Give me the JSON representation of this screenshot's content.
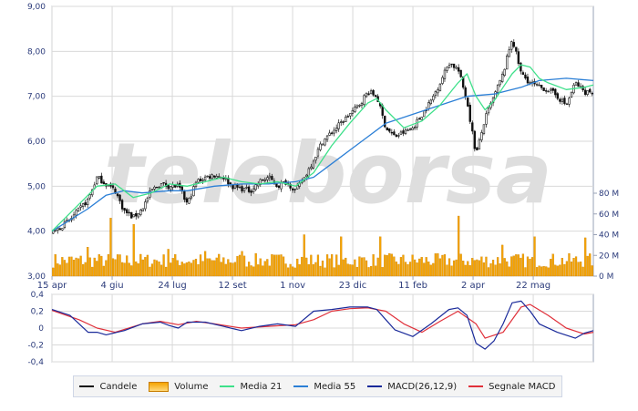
{
  "watermark": "teleborsa",
  "colors": {
    "candle": "#111111",
    "volume": "#f5a300",
    "volume_edge": "#c77d00",
    "media21": "#3ee08a",
    "media55": "#2b7fd6",
    "macd": "#1a2a9a",
    "signal": "#e0303a",
    "grid": "#d9d9d9",
    "axis_text": "#2a3a7a"
  },
  "x_ticks": [
    "15 apr",
    "4 giu",
    "24 lug",
    "12 set",
    "1 nov",
    "23 dic",
    "11 feb",
    "2 apr",
    "22 mag"
  ],
  "legend": [
    {
      "label": "Candele",
      "key": "candle",
      "kind": "line"
    },
    {
      "label": "Volume",
      "key": "volume",
      "kind": "box"
    },
    {
      "label": "Media 21",
      "key": "media21",
      "kind": "line"
    },
    {
      "label": "Media 55",
      "key": "media55",
      "kind": "line"
    },
    {
      "label": "MACD(26,12,9)",
      "key": "macd",
      "kind": "line"
    },
    {
      "label": "Segnale MACD",
      "key": "signal",
      "kind": "line"
    }
  ],
  "chart_data": [
    {
      "type": "candlestick",
      "ylim": [
        3.0,
        9.0
      ],
      "y_ticks": [
        "3,00",
        "4,00",
        "5,00",
        "6,00",
        "7,00",
        "8,00",
        "9,00"
      ],
      "x_range": [
        0,
        120
      ],
      "close_path": [
        [
          0,
          3.95
        ],
        [
          4,
          4.25
        ],
        [
          8,
          4.7
        ],
        [
          10,
          5.2
        ],
        [
          12,
          5.05
        ],
        [
          14,
          4.9
        ],
        [
          16,
          4.45
        ],
        [
          18,
          4.3
        ],
        [
          20,
          4.5
        ],
        [
          22,
          4.9
        ],
        [
          24,
          5.05
        ],
        [
          26,
          5.0
        ],
        [
          28,
          5.0
        ],
        [
          30,
          4.6
        ],
        [
          32,
          5.1
        ],
        [
          34,
          5.2
        ],
        [
          36,
          5.25
        ],
        [
          38,
          5.2
        ],
        [
          40,
          5.0
        ],
        [
          42,
          4.95
        ],
        [
          44,
          4.9
        ],
        [
          46,
          5.1
        ],
        [
          48,
          5.2
        ],
        [
          50,
          5.0
        ],
        [
          52,
          5.1
        ],
        [
          54,
          4.9
        ],
        [
          56,
          5.2
        ],
        [
          58,
          5.6
        ],
        [
          60,
          6.0
        ],
        [
          62,
          6.2
        ],
        [
          64,
          6.4
        ],
        [
          66,
          6.6
        ],
        [
          68,
          6.8
        ],
        [
          70,
          7.1
        ],
        [
          72,
          7.0
        ],
        [
          74,
          6.3
        ],
        [
          76,
          6.1
        ],
        [
          78,
          6.2
        ],
        [
          80,
          6.3
        ],
        [
          82,
          6.6
        ],
        [
          84,
          6.9
        ],
        [
          86,
          7.3
        ],
        [
          88,
          7.75
        ],
        [
          90,
          7.6
        ],
        [
          92,
          6.9
        ],
        [
          94,
          5.7
        ],
        [
          96,
          6.5
        ],
        [
          98,
          7.0
        ],
        [
          100,
          7.5
        ],
        [
          102,
          8.3
        ],
        [
          104,
          7.5
        ],
        [
          106,
          7.3
        ],
        [
          108,
          7.2
        ],
        [
          110,
          7.15
        ],
        [
          112,
          7.0
        ],
        [
          114,
          6.8
        ],
        [
          116,
          7.3
        ],
        [
          118,
          7.1
        ],
        [
          120,
          7.1
        ]
      ],
      "media21": [
        [
          0,
          4.0
        ],
        [
          6,
          4.6
        ],
        [
          10,
          5.0
        ],
        [
          14,
          5.05
        ],
        [
          18,
          4.75
        ],
        [
          22,
          4.85
        ],
        [
          26,
          5.05
        ],
        [
          30,
          5.0
        ],
        [
          34,
          5.1
        ],
        [
          38,
          5.2
        ],
        [
          42,
          5.1
        ],
        [
          46,
          5.05
        ],
        [
          50,
          5.1
        ],
        [
          54,
          5.0
        ],
        [
          58,
          5.3
        ],
        [
          62,
          5.9
        ],
        [
          66,
          6.4
        ],
        [
          70,
          6.85
        ],
        [
          72,
          6.95
        ],
        [
          74,
          6.7
        ],
        [
          78,
          6.3
        ],
        [
          82,
          6.45
        ],
        [
          86,
          6.8
        ],
        [
          90,
          7.3
        ],
        [
          92,
          7.5
        ],
        [
          94,
          7.0
        ],
        [
          96,
          6.7
        ],
        [
          98,
          6.9
        ],
        [
          100,
          7.2
        ],
        [
          102,
          7.5
        ],
        [
          104,
          7.7
        ],
        [
          106,
          7.65
        ],
        [
          108,
          7.4
        ],
        [
          110,
          7.3
        ],
        [
          114,
          7.15
        ],
        [
          118,
          7.2
        ],
        [
          120,
          7.25
        ]
      ],
      "media55": [
        [
          0,
          4.0
        ],
        [
          8,
          4.5
        ],
        [
          12,
          4.8
        ],
        [
          16,
          4.9
        ],
        [
          20,
          4.85
        ],
        [
          26,
          4.9
        ],
        [
          30,
          4.9
        ],
        [
          36,
          5.0
        ],
        [
          42,
          5.05
        ],
        [
          48,
          5.05
        ],
        [
          54,
          5.1
        ],
        [
          58,
          5.2
        ],
        [
          62,
          5.5
        ],
        [
          66,
          5.8
        ],
        [
          70,
          6.1
        ],
        [
          74,
          6.4
        ],
        [
          80,
          6.6
        ],
        [
          86,
          6.8
        ],
        [
          92,
          7.0
        ],
        [
          98,
          7.05
        ],
        [
          104,
          7.2
        ],
        [
          108,
          7.35
        ],
        [
          114,
          7.4
        ],
        [
          120,
          7.35
        ]
      ]
    },
    {
      "type": "bar",
      "name": "Volume",
      "ylim": [
        0,
        80
      ],
      "y_ticks": [
        "0 M",
        "20 M",
        "40 M",
        "60 M",
        "80 M"
      ],
      "count": 235,
      "spikes": [
        [
          8,
          28
        ],
        [
          13,
          56
        ],
        [
          18,
          50
        ],
        [
          26,
          26
        ],
        [
          34,
          24
        ],
        [
          42,
          24
        ],
        [
          56,
          40
        ],
        [
          64,
          38
        ],
        [
          73,
          38
        ],
        [
          90,
          58
        ],
        [
          100,
          30
        ],
        [
          107,
          38
        ],
        [
          118,
          37
        ]
      ]
    },
    {
      "type": "line",
      "name": "MACD",
      "ylim": [
        -0.4,
        0.4
      ],
      "y_ticks": [
        "-0,4",
        "-0,2",
        "0",
        "0,2",
        "0,4"
      ],
      "macd": [
        [
          0,
          0.22
        ],
        [
          4,
          0.15
        ],
        [
          8,
          -0.05
        ],
        [
          10,
          -0.05
        ],
        [
          12,
          -0.08
        ],
        [
          16,
          -0.03
        ],
        [
          20,
          0.05
        ],
        [
          24,
          0.07
        ],
        [
          26,
          0.03
        ],
        [
          28,
          0.0
        ],
        [
          30,
          0.07
        ],
        [
          34,
          0.07
        ],
        [
          38,
          0.02
        ],
        [
          42,
          -0.03
        ],
        [
          46,
          0.02
        ],
        [
          50,
          0.05
        ],
        [
          54,
          0.02
        ],
        [
          58,
          0.2
        ],
        [
          62,
          0.22
        ],
        [
          66,
          0.25
        ],
        [
          70,
          0.25
        ],
        [
          72,
          0.22
        ],
        [
          74,
          0.1
        ],
        [
          76,
          -0.02
        ],
        [
          80,
          -0.1
        ],
        [
          84,
          0.05
        ],
        [
          88,
          0.22
        ],
        [
          90,
          0.24
        ],
        [
          92,
          0.15
        ],
        [
          94,
          -0.18
        ],
        [
          96,
          -0.25
        ],
        [
          98,
          -0.15
        ],
        [
          100,
          0.05
        ],
        [
          102,
          0.3
        ],
        [
          104,
          0.32
        ],
        [
          106,
          0.2
        ],
        [
          108,
          0.05
        ],
        [
          112,
          -0.05
        ],
        [
          116,
          -0.12
        ],
        [
          118,
          -0.06
        ],
        [
          120,
          -0.03
        ]
      ],
      "signal": [
        [
          0,
          0.21
        ],
        [
          6,
          0.1
        ],
        [
          10,
          0.0
        ],
        [
          14,
          -0.05
        ],
        [
          20,
          0.05
        ],
        [
          24,
          0.08
        ],
        [
          28,
          0.04
        ],
        [
          32,
          0.08
        ],
        [
          36,
          0.05
        ],
        [
          42,
          0.0
        ],
        [
          48,
          0.02
        ],
        [
          54,
          0.04
        ],
        [
          58,
          0.1
        ],
        [
          62,
          0.2
        ],
        [
          66,
          0.23
        ],
        [
          70,
          0.24
        ],
        [
          74,
          0.2
        ],
        [
          78,
          0.05
        ],
        [
          82,
          -0.05
        ],
        [
          86,
          0.08
        ],
        [
          90,
          0.2
        ],
        [
          94,
          0.05
        ],
        [
          96,
          -0.12
        ],
        [
          100,
          -0.05
        ],
        [
          104,
          0.25
        ],
        [
          106,
          0.28
        ],
        [
          110,
          0.15
        ],
        [
          114,
          0.0
        ],
        [
          118,
          -0.07
        ],
        [
          120,
          -0.05
        ]
      ]
    }
  ]
}
